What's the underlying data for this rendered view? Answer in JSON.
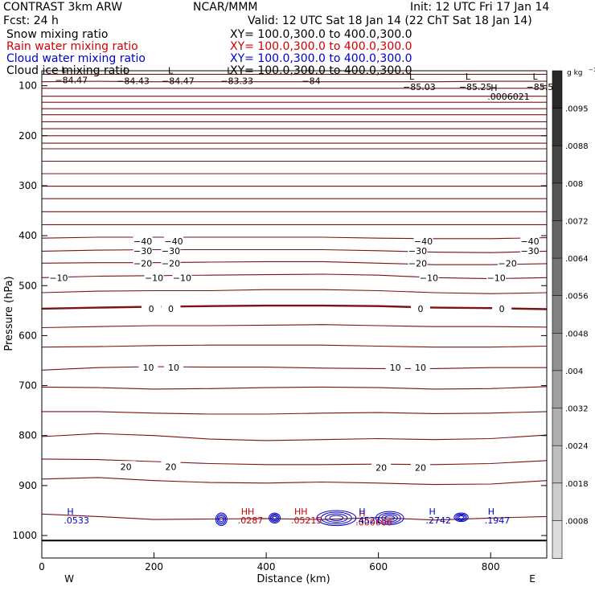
{
  "header": {
    "model": "CONTRAST  3km ARW",
    "org": "NCAR/MMM",
    "init": "Init: 12 UTC Fri 17 Jan 14",
    "fcst": "Fcst:   24 h",
    "valid": "Valid: 12 UTC Sat 18 Jan 14 (22 ChT Sat 18 Jan 14)"
  },
  "legend": [
    {
      "label": "Snow mixing ratio",
      "xy": "XY= 100.0,300.0 to 400.0,300.0",
      "color": "#000000"
    },
    {
      "label": "Rain water mixing ratio",
      "xy": "XY= 100.0,300.0 to 400.0,300.0",
      "color": "#d00000"
    },
    {
      "label": "Cloud water mixing ratio",
      "xy": "XY= 100.0,300.0 to 400.0,300.0",
      "color": "#0000c8"
    },
    {
      "label": "Cloud ice mixing ratio",
      "xy": "XY= 100.0,300.0 to 400.0,300.0",
      "color": "#000000"
    }
  ],
  "colors": {
    "temp": "#7a1414",
    "rain": "#d00000",
    "cloud": "#0000c8",
    "ice": "#000000"
  },
  "chart_data": {
    "type": "contour",
    "xlabel": "Distance (km)",
    "ylabel": "Pressure (hPa)",
    "xlim": [
      0,
      900
    ],
    "ylim": [
      1045,
      70
    ],
    "x_ticks": [
      0,
      200,
      400,
      600,
      800
    ],
    "y_ticks": [
      100,
      200,
      300,
      400,
      500,
      600,
      700,
      800,
      900,
      1000
    ],
    "x_end_labels": {
      "left": "W",
      "right": "E"
    },
    "colorbar": {
      "unit": "g kg",
      "unit_exp": "−1",
      "tick_labels": [
        ".0095",
        ".0088",
        ".008",
        ".0072",
        ".0064",
        ".0056",
        ".0048",
        ".004",
        ".0032",
        ".0024",
        ".0018",
        ".0008"
      ]
    },
    "temperature_contours": [
      {
        "p": [
          77,
          77,
          77,
          77,
          77,
          77,
          77,
          77,
          77,
          77
        ]
      },
      {
        "p": [
          92,
          91,
          92,
          92,
          92,
          92,
          92,
          92,
          91,
          91
        ]
      },
      {
        "p": [
          105,
          105,
          105,
          105,
          105,
          105,
          105,
          105,
          105,
          105
        ]
      },
      {
        "p": [
          121,
          121,
          121,
          121,
          121,
          121,
          121,
          121,
          121,
          121
        ]
      },
      {
        "p": [
          133,
          133,
          133,
          133,
          133,
          133,
          133,
          133,
          133,
          133
        ]
      },
      {
        "p": [
          146,
          146,
          146,
          146,
          146,
          146,
          146,
          146,
          146,
          146
        ]
      },
      {
        "p": [
          158,
          158,
          158,
          158,
          158,
          158,
          158,
          158,
          158,
          158
        ]
      },
      {
        "p": [
          172,
          172,
          172,
          172,
          172,
          172,
          172,
          172,
          172,
          172
        ]
      },
      {
        "p": [
          186,
          186,
          186,
          186,
          186,
          186,
          186,
          186,
          186,
          186
        ]
      },
      {
        "p": [
          200,
          200,
          200,
          200,
          200,
          200,
          200,
          200,
          200,
          200
        ]
      },
      {
        "p": [
          215,
          215,
          215,
          215,
          215,
          215,
          215,
          215,
          215,
          215
        ]
      },
      {
        "p": [
          226,
          226,
          226,
          226,
          226,
          226,
          226,
          226,
          226,
          226
        ]
      },
      {
        "p": [
          251,
          251,
          251,
          251,
          251,
          251,
          251,
          251,
          251,
          251
        ]
      },
      {
        "p": [
          276,
          276,
          276,
          276,
          276,
          276,
          276,
          276,
          276,
          276
        ]
      },
      {
        "p": [
          301,
          301,
          301,
          301,
          301,
          301,
          301,
          301,
          301,
          301
        ]
      },
      {
        "p": [
          326,
          326,
          326,
          326,
          326,
          326,
          326,
          326,
          326,
          326
        ]
      },
      {
        "p": [
          352,
          352,
          352,
          352,
          352,
          352,
          352,
          352,
          352,
          352
        ]
      },
      {
        "p": [
          378,
          378,
          378,
          378,
          378,
          378,
          378,
          378,
          378,
          378
        ]
      },
      {
        "p": [
          405,
          403,
          403,
          403,
          403,
          403,
          405,
          406,
          406,
          404
        ]
      },
      {
        "p": [
          431,
          429,
          428,
          428,
          428,
          428,
          430,
          433,
          434,
          431
        ]
      },
      {
        "p": [
          455,
          454,
          454,
          453,
          452,
          452,
          455,
          458,
          458,
          456
        ]
      },
      {
        "p": [
          484,
          481,
          480,
          479,
          478,
          477,
          479,
          484,
          486,
          484
        ]
      },
      {
        "p": [
          514,
          511,
          510,
          510,
          508,
          508,
          510,
          514,
          516,
          514
        ]
      },
      {
        "p": [
          546,
          544,
          542,
          541,
          540,
          540,
          541,
          544,
          545,
          547
        ]
      },
      {
        "p": [
          584,
          582,
          580,
          580,
          579,
          578,
          580,
          582,
          582,
          583
        ]
      },
      {
        "p": [
          623,
          622,
          620,
          619,
          619,
          619,
          621,
          623,
          623,
          621
        ]
      },
      {
        "p": [
          669,
          664,
          662,
          663,
          663,
          665,
          666,
          666,
          664,
          664
        ]
      },
      {
        "p": [
          703,
          704,
          707,
          706,
          704,
          703,
          704,
          707,
          706,
          702
        ]
      },
      {
        "p": [
          752,
          752,
          755,
          757,
          757,
          755,
          754,
          756,
          755,
          752
        ]
      },
      {
        "p": [
          802,
          796,
          800,
          807,
          810,
          808,
          806,
          808,
          806,
          799
        ]
      },
      {
        "p": [
          847,
          848,
          852,
          856,
          858,
          858,
          857,
          858,
          856,
          850
        ]
      },
      {
        "p": [
          887,
          884,
          890,
          894,
          895,
          893,
          895,
          898,
          897,
          890
        ]
      },
      {
        "p": [
          957,
          962,
          968,
          967,
          966,
          968,
          964,
          969,
          965,
          962
        ]
      }
    ],
    "contour_labels": [
      {
        "x": 180,
        "p": 411,
        "text": "−40"
      },
      {
        "x": 235,
        "p": 411,
        "text": "−40"
      },
      {
        "x": 680,
        "p": 411,
        "text": "−40"
      },
      {
        "x": 870,
        "p": 411,
        "text": "−40"
      },
      {
        "x": 180,
        "p": 430,
        "text": "−30"
      },
      {
        "x": 230,
        "p": 430,
        "text": "−30"
      },
      {
        "x": 670,
        "p": 430,
        "text": "−30"
      },
      {
        "x": 870,
        "p": 430,
        "text": "−30"
      },
      {
        "x": 180,
        "p": 455,
        "text": "−20"
      },
      {
        "x": 230,
        "p": 455,
        "text": "−20"
      },
      {
        "x": 670,
        "p": 455,
        "text": "−20"
      },
      {
        "x": 830,
        "p": 455,
        "text": "−20"
      },
      {
        "x": 30,
        "p": 484,
        "text": "−10"
      },
      {
        "x": 200,
        "p": 484,
        "text": "−10"
      },
      {
        "x": 250,
        "p": 484,
        "text": "−10"
      },
      {
        "x": 690,
        "p": 484,
        "text": "−10"
      },
      {
        "x": 810,
        "p": 484,
        "text": "−10"
      },
      {
        "x": 195,
        "p": 546,
        "text": "0"
      },
      {
        "x": 230,
        "p": 546,
        "text": "0"
      },
      {
        "x": 675,
        "p": 546,
        "text": "0"
      },
      {
        "x": 820,
        "p": 546,
        "text": "0"
      },
      {
        "x": 190,
        "p": 664,
        "text": "10"
      },
      {
        "x": 235,
        "p": 664,
        "text": "10"
      },
      {
        "x": 630,
        "p": 664,
        "text": "10"
      },
      {
        "x": 675,
        "p": 664,
        "text": "10"
      },
      {
        "x": 150,
        "p": 862,
        "text": "20"
      },
      {
        "x": 230,
        "p": 862,
        "text": "20"
      },
      {
        "x": 605,
        "p": 864,
        "text": "20"
      },
      {
        "x": 675,
        "p": 864,
        "text": "20"
      }
    ],
    "lows": [
      {
        "x": 35,
        "p": 74,
        "marker": "L",
        "value": "−84.47"
      },
      {
        "x": 145,
        "p": 76,
        "marker": "L",
        "value": "−84.43"
      },
      {
        "x": 225,
        "p": 76,
        "marker": "L",
        "value": "−84.47"
      },
      {
        "x": 330,
        "p": 76,
        "marker": "L",
        "value": "−83.33"
      },
      {
        "x": 475,
        "p": 76,
        "marker": "L",
        "value": "−84"
      },
      {
        "x": 655,
        "p": 88,
        "marker": "L",
        "value": "−85.03"
      },
      {
        "x": 755,
        "p": 88,
        "marker": "L",
        "value": "−85.25"
      },
      {
        "x": 875,
        "p": 88,
        "marker": "L",
        "value": "−85.5"
      }
    ],
    "highs": [
      {
        "x": 800,
        "p": 110,
        "marker": "H",
        "value": ".0006021",
        "color": "#000000"
      },
      {
        "x": 45,
        "p": 958,
        "marker": "H",
        "value": ".0533",
        "color": "#0000c8"
      },
      {
        "x": 355,
        "p": 958,
        "marker": "HH",
        "value": ".0287",
        "color": "#d00000"
      },
      {
        "x": 450,
        "p": 958,
        "marker": "HH",
        "value": ".05215",
        "color": "#d00000"
      },
      {
        "x": 565,
        "p": 962,
        "marker": "H",
        "value": ".000606",
        "color": "#d00000"
      },
      {
        "x": 565,
        "p": 958,
        "marker": "H",
        "value": ".4521",
        "color": "#0000c8"
      },
      {
        "x": 690,
        "p": 958,
        "marker": "H",
        "value": ".2742",
        "color": "#0000c8"
      },
      {
        "x": 795,
        "p": 958,
        "marker": "H",
        "value": ".1947",
        "color": "#0000c8"
      }
    ],
    "cloud_water_contours": [
      {
        "x": [
          310,
          330
        ],
        "p": [
          955,
          980
        ]
      },
      {
        "x": [
          405,
          425
        ],
        "p": [
          955,
          975
        ]
      },
      {
        "x": [
          490,
          560
        ],
        "p": [
          950,
          980
        ]
      },
      {
        "x": [
          595,
          645
        ],
        "p": [
          952,
          978
        ]
      },
      {
        "x": [
          735,
          760
        ],
        "p": [
          955,
          972
        ]
      }
    ]
  }
}
